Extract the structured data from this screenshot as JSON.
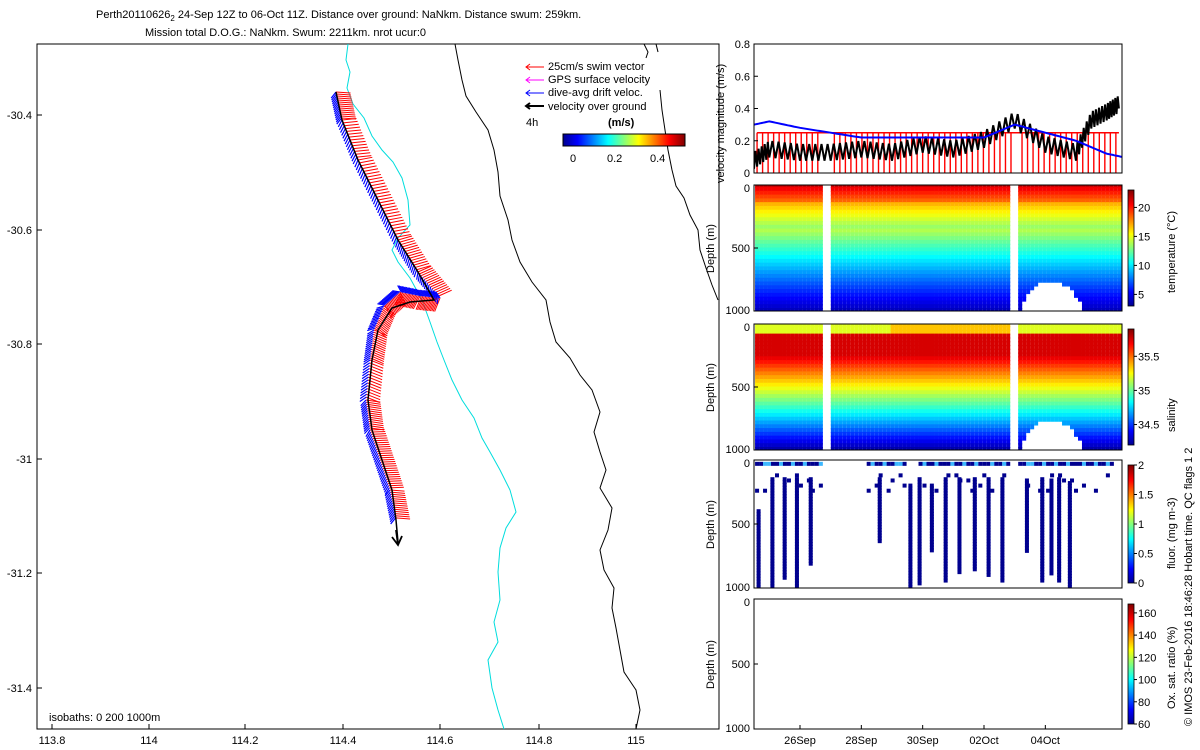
{
  "title": {
    "line1": "Perth20110626",
    "line1_sub": "2",
    "line1_rest": " 24-Sep 12Z to 06-Oct 11Z. Distance over ground: NaNkm. Distance swum: 259km.",
    "line2": "Mission total D.O.G.: NaNkm. Swum: 2211km. nrot ucur:0"
  },
  "map": {
    "lon_ticks": [
      "113.8",
      "114",
      "114.2",
      "114.4",
      "114.6",
      "114.8",
      "115"
    ],
    "lat_ticks": [
      "-30.4",
      "-30.6",
      "-30.8",
      "-31",
      "-31.2",
      "-31.4"
    ],
    "legend": [
      "25cm/s swim vector",
      "GPS surface velocity",
      "dive-avg drift veloc.",
      "velocity over ground"
    ],
    "interval_label": "4h",
    "colorbar_unit": "(m/s)",
    "colorbar_ticks": [
      "0",
      "0.2",
      "0.4"
    ],
    "isobaths_label": "isobaths: 0   200  1000m",
    "colors": {
      "swim": "#ff0000",
      "gps": "#ff00ff",
      "drift": "#0000ff",
      "ground": "#000000",
      "isobath200": "#00e5e5",
      "isobath1000": "#000000"
    }
  },
  "chart_data": [
    {
      "type": "line",
      "title": "",
      "ylabel": "velocity magnitude (m/s)",
      "ylim": [
        0,
        0.8
      ],
      "yticks": [
        "0",
        "0.2",
        "0.4",
        "0.6",
        "0.8"
      ],
      "xlim_days_since_24sep": [
        0.5,
        12.5
      ],
      "series": [
        {
          "name": "swim speed (red bars)",
          "color": "#ff0000",
          "x": [
            0.6,
            12.4
          ],
          "values": [
            0.25,
            0.25
          ]
        },
        {
          "name": "dive-avg drift",
          "color": "#0000ff",
          "x": [
            0.5,
            1,
            2,
            3,
            4,
            5,
            6,
            7,
            8,
            9,
            10,
            11,
            12,
            12.5
          ],
          "values": [
            0.3,
            0.32,
            0.28,
            0.25,
            0.22,
            0.22,
            0.22,
            0.22,
            0.22,
            0.3,
            0.25,
            0.2,
            0.12,
            0.1
          ]
        },
        {
          "name": "velocity over ground",
          "color": "#000000",
          "x": [
            0.5,
            1,
            2,
            3,
            4,
            5,
            6,
            7,
            8,
            9,
            10,
            11,
            11.5,
            12,
            12.4
          ],
          "values": [
            0.05,
            0.12,
            0.1,
            0.1,
            0.12,
            0.1,
            0.15,
            0.12,
            0.18,
            0.3,
            0.15,
            0.1,
            0.3,
            0.35,
            0.4
          ]
        }
      ]
    },
    {
      "type": "heatmap",
      "ylabel": "Depth (m)",
      "yticks": [
        "0",
        "500",
        "1000"
      ],
      "colorbar_label": "temperature (°C)",
      "colorbar_ticks": [
        "5",
        "10",
        "15",
        "20"
      ],
      "crange": [
        3,
        23
      ]
    },
    {
      "type": "heatmap",
      "ylabel": "Depth (m)",
      "yticks": [
        "0",
        "500",
        "1000"
      ],
      "colorbar_label": "salinity",
      "colorbar_ticks": [
        "34.5",
        "35",
        "35.5"
      ],
      "crange": [
        34.2,
        35.9
      ]
    },
    {
      "type": "scatter",
      "ylabel": "Depth (m)",
      "yticks": [
        "0",
        "500",
        "1000"
      ],
      "colorbar_label": "fluor. (mg m-3)",
      "colorbar_ticks": [
        "0",
        "0.5",
        "1",
        "1.5",
        "2"
      ],
      "crange": [
        0,
        2
      ]
    },
    {
      "type": "scatter",
      "ylabel": "Depth (m)",
      "yticks": [
        "0",
        "500",
        "1000"
      ],
      "colorbar_label": "Ox. sat. ratio (%)",
      "colorbar_ticks": [
        "60",
        "80",
        "100",
        "120",
        "140",
        "160"
      ],
      "crange": [
        60,
        168
      ]
    }
  ],
  "time_axis": {
    "labels": [
      "26Sep",
      "28Sep",
      "30Sep",
      "02Oct",
      "04Oct"
    ]
  },
  "credit": "© IMOS 23-Feb-2016 18:46:28 Hobart time. QC flags 1  2"
}
